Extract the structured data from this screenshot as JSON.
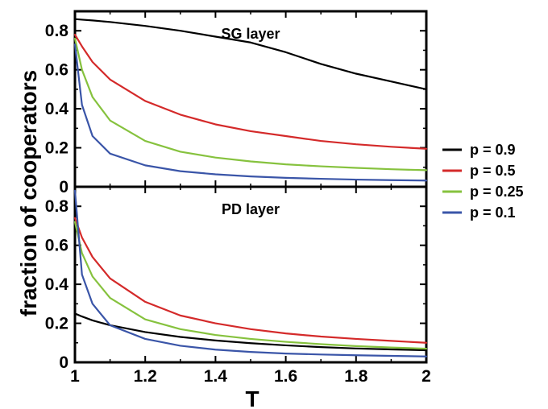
{
  "chart_data": {
    "type": "line",
    "xlabel": "T",
    "ylabel": "fraction of cooperators",
    "xlim": [
      1,
      2
    ],
    "x_ticks": [
      "1",
      "1.2",
      "1.4",
      "1.6",
      "1.8",
      "2"
    ],
    "legend": {
      "placement": "right",
      "entries": [
        {
          "label": "p = 0.9",
          "color": "#000000"
        },
        {
          "label": "p = 0.5",
          "color": "#d42a2a"
        },
        {
          "label": "p = 0.25",
          "color": "#86c23e"
        },
        {
          "label": "p = 0.1",
          "color": "#3a55a8"
        }
      ]
    },
    "x": [
      1.0,
      1.02,
      1.05,
      1.1,
      1.2,
      1.3,
      1.4,
      1.5,
      1.6,
      1.7,
      1.8,
      1.9,
      2.0
    ],
    "panels": [
      {
        "title": "SG layer",
        "ylim": [
          0,
          0.9
        ],
        "y_ticks": [
          "0",
          "0.2",
          "0.4",
          "0.6",
          "0.8"
        ],
        "series": [
          {
            "name": "p = 0.9",
            "color": "#000000",
            "values": [
              0.86,
              0.857,
              0.853,
              0.845,
              0.825,
              0.8,
              0.77,
              0.74,
              0.69,
              0.63,
              0.58,
              0.54,
              0.5
            ]
          },
          {
            "name": "p = 0.5",
            "color": "#d42a2a",
            "values": [
              0.78,
              0.72,
              0.64,
              0.55,
              0.44,
              0.37,
              0.32,
              0.285,
              0.26,
              0.235,
              0.218,
              0.205,
              0.195
            ]
          },
          {
            "name": "p = 0.25",
            "color": "#86c23e",
            "values": [
              0.76,
              0.6,
              0.46,
              0.34,
              0.235,
              0.18,
              0.15,
              0.13,
              0.115,
              0.105,
              0.097,
              0.09,
              0.085
            ]
          },
          {
            "name": "p = 0.1",
            "color": "#3a55a8",
            "values": [
              0.73,
              0.42,
              0.26,
              0.17,
              0.11,
              0.08,
              0.064,
              0.053,
              0.046,
              0.041,
              0.037,
              0.034,
              0.032
            ]
          }
        ]
      },
      {
        "title": "PD layer",
        "ylim": [
          0,
          0.9
        ],
        "y_ticks": [
          "0",
          "0.2",
          "0.4",
          "0.6",
          "0.8"
        ],
        "series": [
          {
            "name": "p = 0.9",
            "color": "#000000",
            "values": [
              0.25,
              0.235,
              0.215,
              0.19,
              0.155,
              0.13,
              0.112,
              0.098,
              0.087,
              0.078,
              0.071,
              0.066,
              0.062
            ]
          },
          {
            "name": "p = 0.5",
            "color": "#d42a2a",
            "values": [
              0.74,
              0.64,
              0.54,
              0.43,
              0.31,
              0.24,
              0.2,
              0.17,
              0.148,
              0.132,
              0.12,
              0.11,
              0.1
            ]
          },
          {
            "name": "p = 0.25",
            "color": "#86c23e",
            "values": [
              0.72,
              0.56,
              0.44,
              0.33,
              0.22,
              0.17,
              0.14,
              0.12,
              0.105,
              0.093,
              0.083,
              0.076,
              0.07
            ]
          },
          {
            "name": "p = 0.1",
            "color": "#3a55a8",
            "values": [
              0.88,
              0.45,
              0.3,
              0.19,
              0.12,
              0.085,
              0.065,
              0.053,
              0.045,
              0.04,
              0.036,
              0.033,
              0.03
            ]
          }
        ]
      }
    ]
  }
}
